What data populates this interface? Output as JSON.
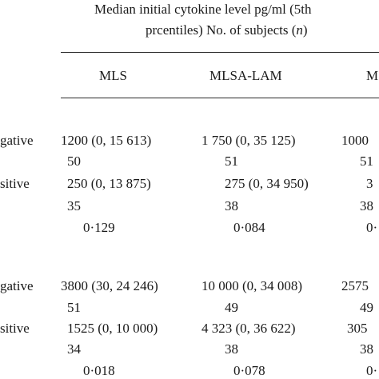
{
  "header": {
    "line1": "Median initial cytokine level pg/ml (5th",
    "line2_prefix": "prcentiles) No. of subjects (",
    "line2_n": "n",
    "line2_suffix": ")"
  },
  "columns": [
    "MLS",
    "MLSA-LAM",
    "M"
  ],
  "groups": [
    {
      "rows": [
        {
          "label": "gative",
          "cells": [
            "1200 (0, 15 613)",
            "1 750 (0, 35 125)",
            "1000"
          ]
        },
        {
          "label": "",
          "cells": [
            "50",
            "51",
            "51"
          ]
        },
        {
          "label": "sitive",
          "cells": [
            "250 (0, 13 875)",
            "275 (0, 34 950)",
            "3"
          ]
        },
        {
          "label": "",
          "cells": [
            "35",
            "38",
            "38"
          ]
        },
        {
          "label": "",
          "cells": [
            "0·129",
            "0·084",
            "0·"
          ]
        }
      ]
    },
    {
      "rows": [
        {
          "label": "gative",
          "cells": [
            "3800 (30, 24 246)",
            "10 000 (0, 34 008)",
            "2575"
          ]
        },
        {
          "label": "",
          "cells": [
            "51",
            "49",
            "49"
          ]
        },
        {
          "label": "sitive",
          "cells": [
            "1525 (0, 10 000)",
            "4 323 (0, 36 622)",
            "305"
          ]
        },
        {
          "label": "",
          "cells": [
            "34",
            "38",
            "38"
          ]
        },
        {
          "label": "",
          "cells": [
            "0·018",
            "0·078",
            "0·"
          ]
        }
      ]
    }
  ]
}
